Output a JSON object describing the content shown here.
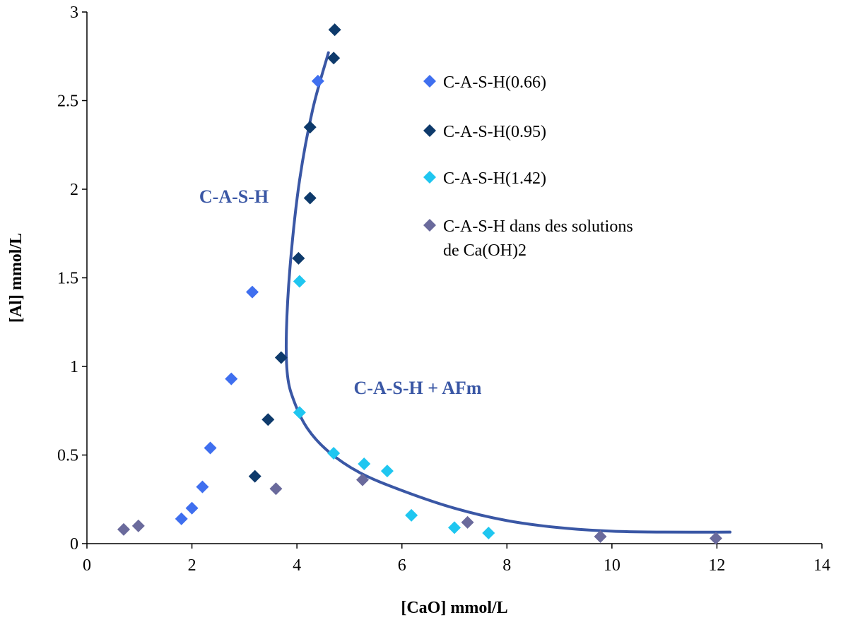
{
  "chart_data": {
    "type": "scatter",
    "title": "",
    "xlabel": "[CaO] mmol/L",
    "ylabel": "[Al] mmol/L",
    "xlim": [
      0,
      14
    ],
    "ylim": [
      0,
      3
    ],
    "x_ticks": [
      0,
      2,
      4,
      6,
      8,
      10,
      12,
      14
    ],
    "y_ticks": [
      0,
      0.5,
      1,
      1.5,
      2,
      2.5,
      3
    ],
    "x_tick_labels": [
      "0",
      "2",
      "4",
      "6",
      "8",
      "10",
      "12",
      "14"
    ],
    "y_tick_labels": [
      "0",
      "0.5",
      "1",
      "1.5",
      "2",
      "2.5",
      "3"
    ],
    "grid": false,
    "legend_position": "top-right",
    "series": [
      {
        "name": "C-A-S-H(0.66)",
        "color": "#3f6fef",
        "marker": "diamond",
        "points": [
          [
            1.8,
            0.14
          ],
          [
            2.0,
            0.2
          ],
          [
            2.2,
            0.32
          ],
          [
            2.35,
            0.54
          ],
          [
            2.75,
            0.93
          ],
          [
            3.15,
            1.42
          ],
          [
            4.4,
            2.61
          ]
        ]
      },
      {
        "name": "C-A-S-H(0.95)",
        "color": "#0e3a6b",
        "marker": "diamond",
        "points": [
          [
            3.2,
            0.38
          ],
          [
            3.45,
            0.7
          ],
          [
            3.7,
            1.05
          ],
          [
            4.03,
            1.61
          ],
          [
            4.25,
            1.95
          ],
          [
            4.25,
            2.35
          ],
          [
            4.7,
            2.74
          ],
          [
            4.72,
            2.9
          ]
        ]
      },
      {
        "name": "C-A-S-H(1.42)",
        "color": "#1fc6f0",
        "marker": "diamond",
        "points": [
          [
            4.05,
            1.48
          ],
          [
            4.05,
            0.74
          ],
          [
            4.7,
            0.51
          ],
          [
            5.28,
            0.45
          ],
          [
            5.72,
            0.41
          ],
          [
            6.18,
            0.16
          ],
          [
            7.0,
            0.09
          ],
          [
            7.65,
            0.06
          ]
        ]
      },
      {
        "name": "C-A-S-H dans des solutions de Ca(OH)2",
        "legend_lines": [
          "C-A-S-H dans des solutions",
          "de Ca(OH)2"
        ],
        "color": "#6a6a9c",
        "marker": "diamond",
        "points": [
          [
            0.7,
            0.08
          ],
          [
            0.98,
            0.1
          ],
          [
            3.6,
            0.31
          ],
          [
            5.25,
            0.36
          ],
          [
            7.25,
            0.12
          ],
          [
            9.78,
            0.04
          ],
          [
            11.98,
            0.03
          ]
        ]
      }
    ],
    "curve": {
      "color": "#3a57a5",
      "points": [
        [
          4.6,
          2.77
        ],
        [
          4.3,
          2.45
        ],
        [
          4.05,
          2.05
        ],
        [
          3.88,
          1.6
        ],
        [
          3.8,
          1.2
        ],
        [
          3.82,
          0.95
        ],
        [
          3.95,
          0.8
        ],
        [
          4.2,
          0.65
        ],
        [
          4.6,
          0.52
        ],
        [
          5.2,
          0.4
        ],
        [
          6.0,
          0.3
        ],
        [
          7.0,
          0.2
        ],
        [
          8.0,
          0.13
        ],
        [
          9.0,
          0.09
        ],
        [
          10.0,
          0.07
        ],
        [
          11.0,
          0.065
        ],
        [
          12.25,
          0.065
        ]
      ]
    },
    "annotations": [
      {
        "text": "C-A-S-H",
        "x": 2.8,
        "y": 1.96
      },
      {
        "text": "C-A-S-H + AFm",
        "x": 6.3,
        "y": 0.88
      }
    ]
  }
}
